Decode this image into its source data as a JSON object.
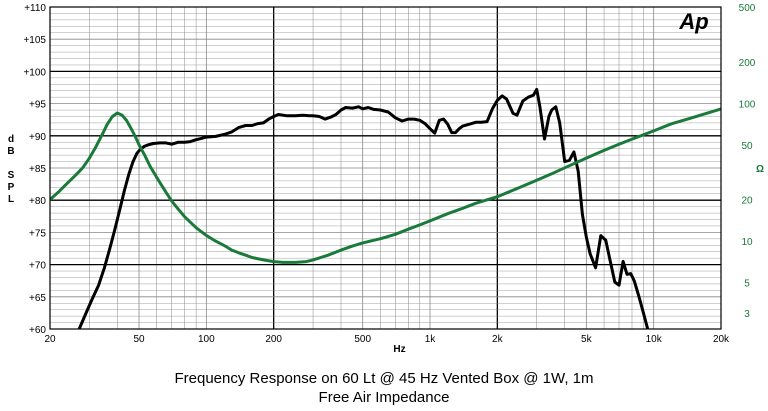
{
  "chart_data": {
    "type": "line",
    "logo": "Ap",
    "x_axis": {
      "label": "Hz",
      "scale": "log",
      "range": [
        20,
        20000
      ],
      "ticks": [
        20,
        50,
        100,
        200,
        500,
        1000,
        2000,
        5000,
        10000,
        20000
      ],
      "tick_labels": [
        "20",
        "50",
        "100",
        "200",
        "500",
        "1k",
        "2k",
        "5k",
        "10k",
        "20k"
      ],
      "major_lines": [
        200,
        2000
      ]
    },
    "y_left": {
      "label_lines": [
        "d",
        "B",
        "",
        "S",
        "P",
        "L"
      ],
      "range": [
        60,
        110
      ],
      "ticks": [
        60,
        65,
        70,
        75,
        80,
        85,
        90,
        95,
        100,
        105,
        110
      ],
      "tick_labels": [
        "+60",
        "+65",
        "+70",
        "+75",
        "+80",
        "+85",
        "+90",
        "+95",
        "+100",
        "+105",
        "+110"
      ],
      "major_lines": [
        70,
        80,
        90,
        100
      ]
    },
    "y_right": {
      "label": "Ω",
      "scale": "log",
      "range": [
        2.3,
        500
      ],
      "ticks": [
        3,
        5,
        10,
        20,
        50,
        100,
        200,
        500
      ],
      "tick_labels": [
        "3",
        "5",
        "10",
        "20",
        "50",
        "100",
        "200",
        "500"
      ]
    },
    "grid": true,
    "colors": {
      "spl": "#000000",
      "impedance": "#1a7a3a",
      "grid": "#888888",
      "major_grid": "#000000"
    },
    "series": [
      {
        "id": "spl",
        "axis": "left",
        "x": [
          27,
          29,
          31,
          33,
          35,
          37,
          39,
          41,
          43,
          45,
          47,
          49,
          51,
          53,
          55,
          58,
          62,
          66,
          70,
          75,
          80,
          85,
          90,
          95,
          100,
          110,
          120,
          130,
          140,
          150,
          160,
          170,
          180,
          190,
          200,
          210,
          230,
          250,
          270,
          290,
          300,
          320,
          340,
          360,
          380,
          400,
          420,
          450,
          480,
          500,
          530,
          560,
          600,
          650,
          700,
          750,
          800,
          850,
          900,
          950,
          1000,
          1050,
          1100,
          1150,
          1200,
          1250,
          1300,
          1350,
          1400,
          1500,
          1600,
          1700,
          1800,
          1900,
          2000,
          2100,
          2200,
          2350,
          2450,
          2600,
          2750,
          2900,
          3000,
          3100,
          3250,
          3400,
          3500,
          3650,
          3800,
          4000,
          4200,
          4400,
          4600,
          4800,
          5000,
          5200,
          5500,
          5800,
          6100,
          6400,
          6700,
          7000,
          7300,
          7600,
          7900,
          8200,
          8600,
          9000,
          9400,
          9800
        ],
        "y": [
          60.0,
          62.5,
          64.8,
          66.8,
          69.5,
          72.5,
          75.5,
          78.5,
          81.5,
          84.0,
          86.0,
          87.3,
          88.0,
          88.4,
          88.6,
          88.8,
          88.9,
          88.9,
          88.7,
          89.0,
          89.0,
          89.1,
          89.4,
          89.6,
          89.8,
          89.9,
          90.2,
          90.6,
          91.3,
          91.6,
          91.6,
          91.9,
          92.0,
          92.6,
          93.0,
          93.3,
          93.1,
          93.1,
          93.2,
          93.1,
          93.1,
          93.0,
          92.6,
          92.9,
          93.3,
          94.0,
          94.4,
          94.3,
          94.5,
          94.2,
          94.4,
          94.1,
          94.0,
          93.7,
          92.8,
          92.3,
          92.6,
          92.6,
          92.4,
          91.9,
          91.1,
          90.4,
          92.4,
          92.6,
          91.8,
          90.5,
          90.5,
          91.1,
          91.5,
          91.8,
          92.1,
          92.1,
          92.2,
          94.2,
          95.5,
          96.2,
          95.7,
          93.5,
          93.2,
          95.4,
          96.0,
          96.3,
          97.2,
          94.5,
          89.5,
          93.0,
          94.0,
          94.5,
          92.0,
          86.0,
          86.2,
          87.5,
          84.5,
          77.8,
          74.3,
          71.7,
          69.5,
          74.5,
          73.8,
          70.5,
          67.3,
          66.8,
          70.5,
          68.5,
          68.6,
          67.4,
          65.0,
          62.5,
          60.0,
          57.5
        ],
        "end_x": 10000
      },
      {
        "id": "impedance",
        "axis": "right",
        "x": [
          20,
          22,
          24,
          26,
          28,
          30,
          32,
          34,
          36,
          38,
          40,
          42,
          44,
          46,
          48,
          50,
          53,
          56,
          60,
          65,
          70,
          75,
          80,
          90,
          100,
          110,
          120,
          130,
          140,
          150,
          160,
          180,
          200,
          220,
          250,
          280,
          300,
          350,
          400,
          450,
          500,
          600,
          700,
          800,
          900,
          1000,
          1200,
          1400,
          1600,
          2000,
          2500,
          3000,
          3500,
          4000,
          5000,
          6000,
          7000,
          8000,
          10000,
          12000,
          15000,
          20000
        ],
        "y": [
          20.0,
          23.0,
          26.5,
          30.0,
          34.0,
          40.0,
          48.0,
          58.0,
          70.0,
          80.0,
          85.0,
          82.0,
          75.0,
          66.0,
          58.0,
          50.0,
          42.0,
          35.0,
          29.0,
          23.5,
          19.5,
          17.0,
          15.0,
          12.5,
          11.0,
          10.0,
          9.3,
          8.6,
          8.2,
          7.9,
          7.6,
          7.3,
          7.1,
          7.0,
          7.0,
          7.1,
          7.3,
          7.9,
          8.6,
          9.2,
          9.7,
          10.4,
          11.2,
          12.2,
          13.1,
          14.0,
          15.8,
          17.3,
          18.8,
          21.0,
          24.4,
          27.6,
          30.8,
          34.0,
          40.0,
          45.5,
          50.5,
          55.0,
          63.0,
          71.0,
          79.0,
          91.0
        ]
      }
    ],
    "caption_line1": "Frequency Response on 60 Lt @ 45 Hz Vented Box @ 1W, 1m",
    "caption_line2": "Free Air Impedance"
  }
}
